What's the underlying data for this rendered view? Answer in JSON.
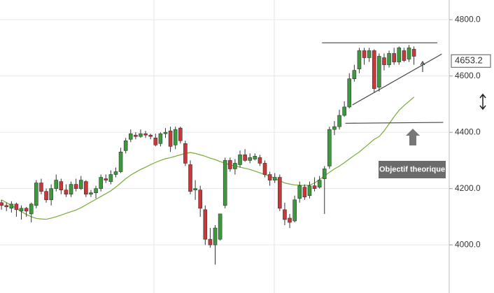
{
  "chart_data": {
    "type": "candlestick",
    "open": [
      4150,
      4140,
      4130,
      4145,
      4120,
      4130,
      4110,
      4140,
      4220,
      4190,
      4160,
      4200,
      4225,
      4195,
      4180,
      4215,
      4200,
      4225,
      4180,
      4185,
      4200,
      4235,
      4225,
      4250,
      4260,
      4335,
      4375,
      4390,
      4385,
      4395,
      4390,
      4380,
      4360,
      4395,
      4405,
      4355,
      4415,
      4360,
      4285,
      4195,
      4195,
      4125,
      4020,
      4000,
      4020,
      4140,
      4300,
      4270,
      4285,
      4320,
      4300,
      4305,
      4310,
      4290,
      4250,
      4230,
      4240,
      4125,
      4095,
      4085,
      4165,
      4205,
      4175,
      4210,
      4205,
      4235,
      4280,
      4410,
      4420,
      4460,
      4490,
      4590,
      4625,
      4690,
      4665,
      4690,
      4560,
      4665,
      4640,
      4680,
      4650,
      4690,
      4660,
      4695
    ],
    "high": [
      4160,
      4150,
      4155,
      4150,
      4140,
      4135,
      4150,
      4230,
      4235,
      4200,
      4215,
      4250,
      4235,
      4215,
      4225,
      4235,
      4245,
      4230,
      4195,
      4210,
      4250,
      4250,
      4265,
      4275,
      4345,
      4380,
      4410,
      4400,
      4410,
      4405,
      4395,
      4395,
      4400,
      4415,
      4420,
      4420,
      4420,
      4370,
      4300,
      4230,
      4210,
      4140,
      4060,
      4070,
      4110,
      4310,
      4310,
      4305,
      4335,
      4340,
      4325,
      4325,
      4320,
      4300,
      4260,
      4255,
      4250,
      4150,
      4110,
      4175,
      4225,
      4215,
      4225,
      4240,
      4245,
      4280,
      4420,
      4440,
      4480,
      4510,
      4610,
      4640,
      4700,
      4700,
      4700,
      4695,
      4680,
      4680,
      4690,
      4700,
      4705,
      4700,
      4710,
      4705
    ],
    "low": [
      4125,
      4120,
      4115,
      4100,
      4090,
      4100,
      4080,
      4130,
      4180,
      4150,
      4140,
      4190,
      4180,
      4170,
      4170,
      4190,
      4195,
      4170,
      4170,
      4165,
      4190,
      4220,
      4215,
      4240,
      4255,
      4325,
      4365,
      4375,
      4380,
      4380,
      4375,
      4350,
      4350,
      4380,
      4330,
      4340,
      4360,
      4280,
      4180,
      4160,
      4100,
      4000,
      3990,
      3930,
      4015,
      4130,
      4260,
      4250,
      4275,
      4295,
      4290,
      4300,
      4280,
      4240,
      4210,
      4220,
      4120,
      4070,
      4060,
      4080,
      4150,
      4160,
      4165,
      4190,
      4200,
      4110,
      4270,
      4390,
      4410,
      4455,
      4485,
      4580,
      4610,
      4640,
      4650,
      4540,
      4545,
      4620,
      4630,
      4640,
      4640,
      4650,
      4650,
      4640
    ],
    "close": [
      4140,
      4135,
      4145,
      4125,
      4130,
      4120,
      4145,
      4220,
      4190,
      4160,
      4200,
      4230,
      4195,
      4180,
      4215,
      4200,
      4230,
      4180,
      4185,
      4200,
      4240,
      4230,
      4250,
      4260,
      4330,
      4370,
      4395,
      4385,
      4395,
      4390,
      4385,
      4355,
      4395,
      4400,
      4350,
      4410,
      4370,
      4290,
      4190,
      4200,
      4130,
      4020,
      4000,
      4060,
      4110,
      4300,
      4270,
      4290,
      4320,
      4300,
      4310,
      4315,
      4290,
      4250,
      4230,
      4240,
      4130,
      4090,
      4080,
      4160,
      4210,
      4170,
      4210,
      4200,
      4230,
      4270,
      4410,
      4420,
      4460,
      4490,
      4590,
      4620,
      4690,
      4665,
      4690,
      4555,
      4670,
      4640,
      4680,
      4650,
      4700,
      4655,
      4700,
      4670
    ],
    "ma": [
      4160,
      4150,
      4140,
      4130,
      4118,
      4108,
      4100,
      4094,
      4092,
      4091,
      4095,
      4100,
      4106,
      4112,
      4118,
      4124,
      4132,
      4142,
      4152,
      4162,
      4172,
      4182,
      4192,
      4205,
      4220,
      4235,
      4248,
      4258,
      4268,
      4276,
      4285,
      4293,
      4300,
      4306,
      4310,
      4315,
      4320,
      4325,
      4328,
      4325,
      4320,
      4315,
      4308,
      4303,
      4296,
      4290,
      4284,
      4280,
      4276,
      4272,
      4268,
      4262,
      4256,
      4250,
      4244,
      4236,
      4228,
      4220,
      4216,
      4213,
      4212,
      4211,
      4212,
      4220,
      4232,
      4245,
      4258,
      4270,
      4280,
      4292,
      4305,
      4318,
      4330,
      4345,
      4360,
      4375,
      4385,
      4405,
      4430,
      4455,
      4478,
      4495,
      4510,
      4525
    ],
    "up_color": "#3c9a3c",
    "down_color": "#c8383a",
    "ma_color": "#7aaa3a",
    "trend_lines": [
      {
        "x": [
          64.5,
          87.7
        ],
        "values": [
          4718,
          4718
        ]
      },
      {
        "x": [
          70.6,
          88.6
        ],
        "values": [
          4497,
          4678
        ]
      },
      {
        "x": [
          69.2,
          88.9
        ],
        "values": [
          4432,
          4435
        ]
      }
    ],
    "last_price": {
      "value": 4653.2,
      "label": "4653.2"
    },
    "annotation": "Objectif theorique",
    "xlim": [
      -0.3,
      90.1
    ],
    "ylim": [
      3829,
      4870
    ],
    "yticks": [
      {
        "value": 4000,
        "label": "4000.0"
      },
      {
        "value": 4200,
        "label": "4200.0"
      },
      {
        "value": 4400,
        "label": "4400.0"
      },
      {
        "value": 4600,
        "label": "4600.0"
      },
      {
        "value": 4800,
        "label": "4800.0"
      }
    ],
    "grid": true
  }
}
